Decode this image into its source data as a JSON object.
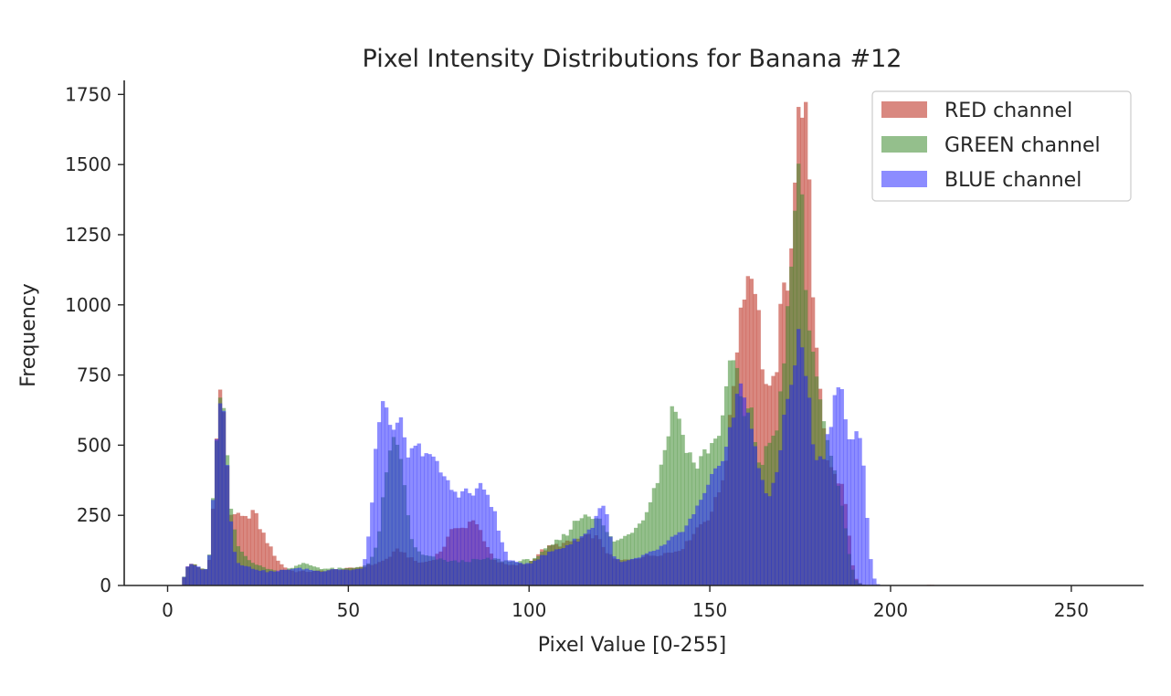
{
  "chart_data": {
    "type": "histogram",
    "title": "Pixel Intensity Distributions for Banana #12",
    "xlabel": "Pixel Value [0-255]",
    "ylabel": "Frequency",
    "xlim": [
      -12,
      270
    ],
    "ylim": [
      0,
      1800
    ],
    "xticks": [
      0,
      50,
      100,
      150,
      200,
      250
    ],
    "yticks": [
      0,
      250,
      500,
      750,
      1000,
      1250,
      1500,
      1750
    ],
    "bins": 256,
    "grid": false,
    "legend_position": "top-right",
    "series": [
      {
        "name": "RED channel",
        "color": "#c0392b",
        "opacity": 0.6,
        "points": [
          [
            0,
            0
          ],
          [
            4,
            0
          ],
          [
            5,
            60
          ],
          [
            7,
            80
          ],
          [
            9,
            60
          ],
          [
            11,
            60
          ],
          [
            12,
            120
          ],
          [
            13,
            420
          ],
          [
            14,
            640
          ],
          [
            15,
            700
          ],
          [
            16,
            560
          ],
          [
            17,
            300
          ],
          [
            18,
            220
          ],
          [
            19,
            260
          ],
          [
            21,
            230
          ],
          [
            23,
            260
          ],
          [
            24,
            270
          ],
          [
            25,
            220
          ],
          [
            27,
            170
          ],
          [
            29,
            120
          ],
          [
            31,
            80
          ],
          [
            33,
            60
          ],
          [
            35,
            50
          ],
          [
            40,
            50
          ],
          [
            45,
            55
          ],
          [
            50,
            60
          ],
          [
            55,
            70
          ],
          [
            58,
            80
          ],
          [
            60,
            90
          ],
          [
            62,
            110
          ],
          [
            64,
            130
          ],
          [
            66,
            110
          ],
          [
            68,
            90
          ],
          [
            70,
            80
          ],
          [
            73,
            90
          ],
          [
            76,
            130
          ],
          [
            78,
            180
          ],
          [
            80,
            220
          ],
          [
            82,
            200
          ],
          [
            84,
            230
          ],
          [
            86,
            210
          ],
          [
            88,
            150
          ],
          [
            90,
            100
          ],
          [
            92,
            80
          ],
          [
            95,
            70
          ],
          [
            100,
            80
          ],
          [
            103,
            120
          ],
          [
            106,
            140
          ],
          [
            110,
            150
          ],
          [
            115,
            170
          ],
          [
            118,
            180
          ],
          [
            120,
            150
          ],
          [
            122,
            110
          ],
          [
            124,
            90
          ],
          [
            127,
            90
          ],
          [
            130,
            100
          ],
          [
            135,
            110
          ],
          [
            140,
            120
          ],
          [
            143,
            140
          ],
          [
            146,
            200
          ],
          [
            150,
            250
          ],
          [
            153,
            350
          ],
          [
            155,
            500
          ],
          [
            157,
            800
          ],
          [
            159,
            1050
          ],
          [
            160,
            1100
          ],
          [
            161,
            1100
          ],
          [
            162,
            1120
          ],
          [
            163,
            1050
          ],
          [
            164,
            850
          ],
          [
            165,
            750
          ],
          [
            166,
            680
          ],
          [
            167,
            680
          ],
          [
            168,
            740
          ],
          [
            169,
            850
          ],
          [
            170,
            1050
          ],
          [
            171,
            1050
          ],
          [
            172,
            1150
          ],
          [
            173,
            1350
          ],
          [
            174,
            1550
          ],
          [
            175,
            1740
          ],
          [
            176,
            1760
          ],
          [
            177,
            1550
          ],
          [
            178,
            1200
          ],
          [
            179,
            900
          ],
          [
            180,
            800
          ],
          [
            181,
            650
          ],
          [
            182,
            500
          ],
          [
            183,
            420
          ],
          [
            184,
            400
          ],
          [
            185,
            380
          ],
          [
            186,
            370
          ],
          [
            187,
            330
          ],
          [
            188,
            250
          ],
          [
            189,
            100
          ],
          [
            190,
            40
          ],
          [
            191,
            10
          ],
          [
            193,
            0
          ],
          [
            210,
            0
          ],
          [
            211,
            5
          ],
          [
            212,
            0
          ],
          [
            255,
            0
          ]
        ]
      },
      {
        "name": "GREEN channel",
        "color": "#3d8b2e",
        "opacity": 0.55,
        "points": [
          [
            0,
            0
          ],
          [
            4,
            0
          ],
          [
            5,
            60
          ],
          [
            7,
            80
          ],
          [
            9,
            60
          ],
          [
            11,
            60
          ],
          [
            12,
            150
          ],
          [
            13,
            450
          ],
          [
            14,
            620
          ],
          [
            15,
            680
          ],
          [
            16,
            560
          ],
          [
            17,
            320
          ],
          [
            18,
            230
          ],
          [
            19,
            150
          ],
          [
            21,
            110
          ],
          [
            23,
            90
          ],
          [
            25,
            70
          ],
          [
            28,
            60
          ],
          [
            30,
            50
          ],
          [
            33,
            60
          ],
          [
            36,
            70
          ],
          [
            38,
            80
          ],
          [
            40,
            70
          ],
          [
            43,
            60
          ],
          [
            46,
            60
          ],
          [
            50,
            60
          ],
          [
            54,
            70
          ],
          [
            56,
            80
          ],
          [
            58,
            150
          ],
          [
            59,
            250
          ],
          [
            60,
            350
          ],
          [
            61,
            420
          ],
          [
            62,
            500
          ],
          [
            63,
            560
          ],
          [
            64,
            470
          ],
          [
            65,
            400
          ],
          [
            66,
            300
          ],
          [
            67,
            200
          ],
          [
            68,
            140
          ],
          [
            70,
            110
          ],
          [
            73,
            100
          ],
          [
            76,
            90
          ],
          [
            80,
            85
          ],
          [
            85,
            90
          ],
          [
            90,
            95
          ],
          [
            95,
            85
          ],
          [
            100,
            90
          ],
          [
            103,
            110
          ],
          [
            106,
            140
          ],
          [
            110,
            180
          ],
          [
            113,
            230
          ],
          [
            116,
            260
          ],
          [
            119,
            240
          ],
          [
            121,
            200
          ],
          [
            123,
            160
          ],
          [
            125,
            160
          ],
          [
            128,
            190
          ],
          [
            131,
            230
          ],
          [
            134,
            320
          ],
          [
            136,
            400
          ],
          [
            138,
            520
          ],
          [
            140,
            650
          ],
          [
            141,
            620
          ],
          [
            142,
            560
          ],
          [
            144,
            480
          ],
          [
            146,
            420
          ],
          [
            148,
            460
          ],
          [
            150,
            500
          ],
          [
            152,
            520
          ],
          [
            154,
            650
          ],
          [
            156,
            800
          ],
          [
            157,
            820
          ],
          [
            158,
            700
          ],
          [
            159,
            620
          ],
          [
            160,
            580
          ],
          [
            161,
            650
          ],
          [
            162,
            560
          ],
          [
            163,
            480
          ],
          [
            164,
            420
          ],
          [
            165,
            450
          ],
          [
            166,
            500
          ],
          [
            168,
            550
          ],
          [
            169,
            600
          ],
          [
            170,
            750
          ],
          [
            171,
            900
          ],
          [
            172,
            1000
          ],
          [
            173,
            1200
          ],
          [
            174,
            1500
          ],
          [
            175,
            1480
          ],
          [
            176,
            1200
          ],
          [
            177,
            950
          ],
          [
            178,
            850
          ],
          [
            179,
            800
          ],
          [
            180,
            750
          ],
          [
            181,
            600
          ],
          [
            182,
            520
          ],
          [
            183,
            460
          ],
          [
            184,
            420
          ],
          [
            185,
            380
          ],
          [
            186,
            340
          ],
          [
            187,
            250
          ],
          [
            188,
            150
          ],
          [
            189,
            80
          ],
          [
            190,
            30
          ],
          [
            191,
            10
          ],
          [
            193,
            0
          ],
          [
            255,
            0
          ]
        ]
      },
      {
        "name": "BLUE channel",
        "color": "#1a1aff",
        "opacity": 0.5,
        "points": [
          [
            0,
            0
          ],
          [
            4,
            0
          ],
          [
            5,
            60
          ],
          [
            7,
            80
          ],
          [
            9,
            60
          ],
          [
            11,
            60
          ],
          [
            12,
            150
          ],
          [
            13,
            450
          ],
          [
            14,
            640
          ],
          [
            15,
            730
          ],
          [
            16,
            560
          ],
          [
            17,
            300
          ],
          [
            18,
            160
          ],
          [
            19,
            90
          ],
          [
            21,
            70
          ],
          [
            24,
            60
          ],
          [
            27,
            50
          ],
          [
            30,
            50
          ],
          [
            34,
            60
          ],
          [
            38,
            60
          ],
          [
            42,
            50
          ],
          [
            46,
            60
          ],
          [
            50,
            55
          ],
          [
            54,
            60
          ],
          [
            55,
            120
          ],
          [
            56,
            220
          ],
          [
            57,
            400
          ],
          [
            58,
            560
          ],
          [
            59,
            600
          ],
          [
            60,
            640
          ],
          [
            61,
            650
          ],
          [
            62,
            560
          ],
          [
            63,
            500
          ],
          [
            64,
            600
          ],
          [
            65,
            550
          ],
          [
            66,
            470
          ],
          [
            67,
            460
          ],
          [
            68,
            480
          ],
          [
            70,
            490
          ],
          [
            72,
            480
          ],
          [
            74,
            430
          ],
          [
            76,
            400
          ],
          [
            78,
            350
          ],
          [
            80,
            330
          ],
          [
            82,
            340
          ],
          [
            84,
            320
          ],
          [
            86,
            350
          ],
          [
            88,
            340
          ],
          [
            90,
            280
          ],
          [
            92,
            170
          ],
          [
            94,
            100
          ],
          [
            96,
            80
          ],
          [
            100,
            80
          ],
          [
            103,
            100
          ],
          [
            106,
            120
          ],
          [
            110,
            140
          ],
          [
            114,
            170
          ],
          [
            117,
            200
          ],
          [
            119,
            260
          ],
          [
            120,
            300
          ],
          [
            121,
            280
          ],
          [
            122,
            220
          ],
          [
            123,
            120
          ],
          [
            125,
            80
          ],
          [
            128,
            90
          ],
          [
            131,
            100
          ],
          [
            134,
            120
          ],
          [
            137,
            140
          ],
          [
            140,
            170
          ],
          [
            143,
            200
          ],
          [
            146,
            260
          ],
          [
            149,
            330
          ],
          [
            152,
            420
          ],
          [
            155,
            520
          ],
          [
            157,
            640
          ],
          [
            158,
            690
          ],
          [
            159,
            700
          ],
          [
            160,
            650
          ],
          [
            161,
            600
          ],
          [
            162,
            560
          ],
          [
            163,
            450
          ],
          [
            164,
            380
          ],
          [
            165,
            330
          ],
          [
            166,
            320
          ],
          [
            167,
            330
          ],
          [
            168,
            390
          ],
          [
            169,
            450
          ],
          [
            170,
            550
          ],
          [
            171,
            620
          ],
          [
            172,
            700
          ],
          [
            173,
            750
          ],
          [
            174,
            850
          ],
          [
            175,
            900
          ],
          [
            176,
            820
          ],
          [
            177,
            700
          ],
          [
            178,
            580
          ],
          [
            179,
            480
          ],
          [
            180,
            440
          ],
          [
            181,
            450
          ],
          [
            182,
            500
          ],
          [
            183,
            560
          ],
          [
            184,
            640
          ],
          [
            185,
            700
          ],
          [
            186,
            720
          ],
          [
            187,
            640
          ],
          [
            188,
            560
          ],
          [
            189,
            500
          ],
          [
            190,
            520
          ],
          [
            191,
            530
          ],
          [
            192,
            480
          ],
          [
            193,
            360
          ],
          [
            194,
            150
          ],
          [
            195,
            40
          ],
          [
            196,
            10
          ],
          [
            197,
            0
          ],
          [
            255,
            0
          ]
        ]
      }
    ]
  }
}
